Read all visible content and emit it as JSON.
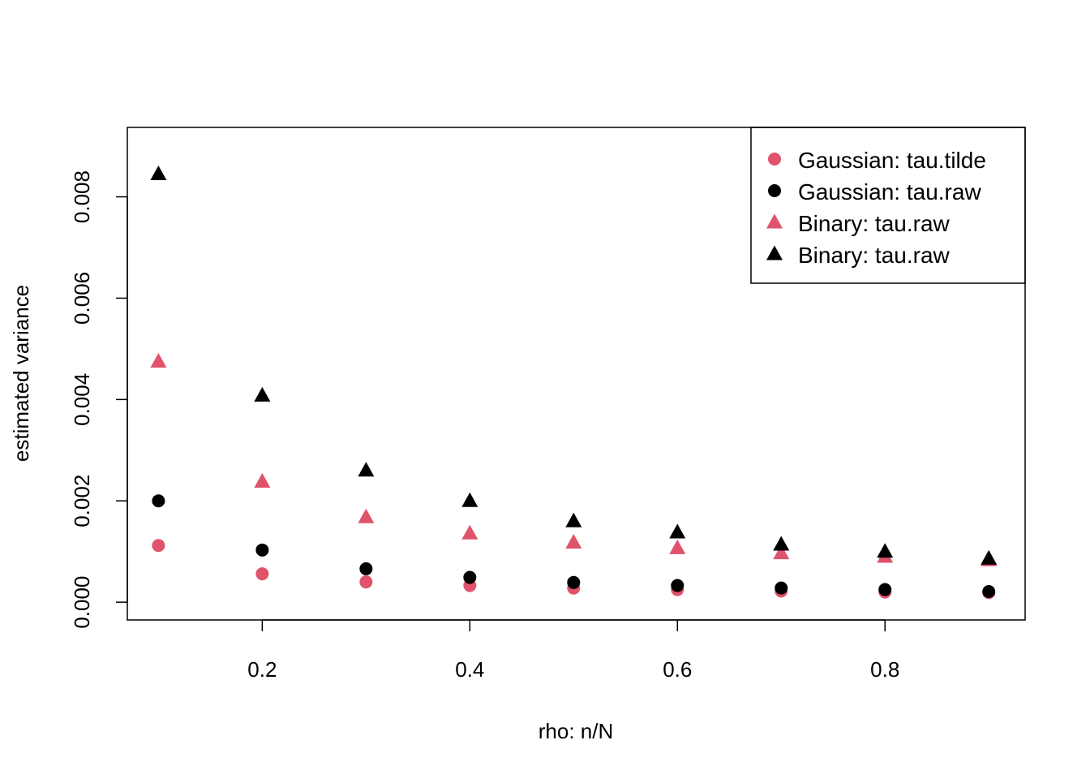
{
  "chart_data": {
    "type": "scatter",
    "title": "",
    "xlabel": "rho: n/N",
    "ylabel": "estimated variance",
    "xlim": [
      0.07,
      0.935
    ],
    "ylim": [
      -0.00035,
      0.00937
    ],
    "x_ticks": [
      0.2,
      0.4,
      0.6,
      0.8
    ],
    "x_tick_labels": [
      "0.2",
      "0.4",
      "0.6",
      "0.8"
    ],
    "y_ticks": [
      0.0,
      0.002,
      0.004,
      0.006,
      0.008
    ],
    "y_tick_labels": [
      "0.000",
      "0.002",
      "0.004",
      "0.006",
      "0.008"
    ],
    "grid": false,
    "legend_position": "top-right",
    "x": [
      0.1,
      0.2,
      0.3,
      0.4,
      0.5,
      0.6,
      0.7,
      0.8,
      0.9
    ],
    "series": [
      {
        "name": "Gaussian: tau.tilde",
        "marker": "circle",
        "color": "#DF536B",
        "values": [
          0.00112,
          0.00056,
          0.0004,
          0.00033,
          0.00028,
          0.00025,
          0.00022,
          0.0002,
          0.00019
        ]
      },
      {
        "name": "Gaussian: tau.raw",
        "marker": "circle",
        "color": "#000000",
        "values": [
          0.002,
          0.00103,
          0.00066,
          0.00049,
          0.00039,
          0.00033,
          0.00028,
          0.00025,
          0.00021
        ]
      },
      {
        "name": "Binary: tau.raw",
        "marker": "triangle",
        "color": "#DF536B",
        "values": [
          0.00475,
          0.00238,
          0.00168,
          0.00136,
          0.00118,
          0.00107,
          0.00097,
          0.0009,
          0.00083
        ]
      },
      {
        "name": "Binary: tau.raw",
        "marker": "triangle",
        "color": "#000000",
        "values": [
          0.00845,
          0.00408,
          0.0026,
          0.002,
          0.0016,
          0.00138,
          0.00114,
          0.001,
          0.00086
        ]
      }
    ]
  }
}
